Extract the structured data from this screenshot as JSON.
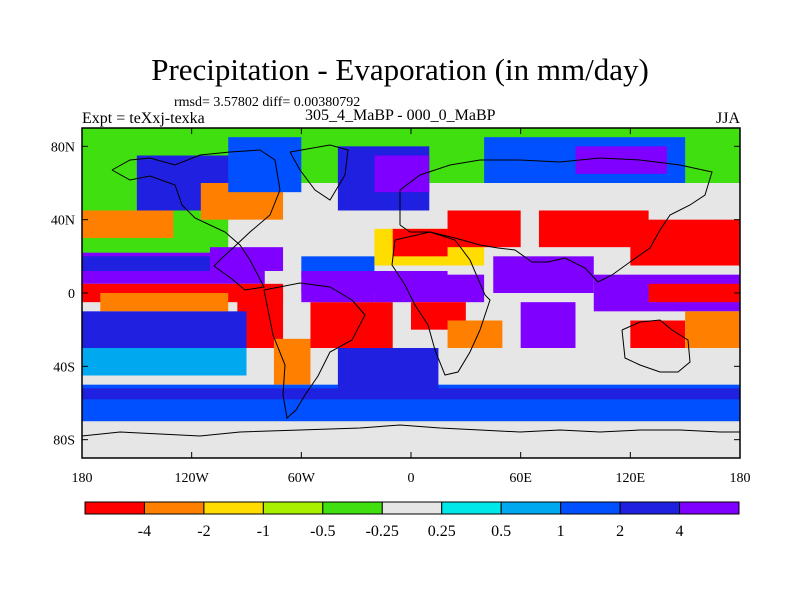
{
  "header": {
    "title": "Precipitation - Evaporation (in mm/day)",
    "stats": "rmsd= 3.57802 diff= 0.00380792",
    "experiment": "Expt = teXxj-texka",
    "case": "305_4_MaBP - 000_0_MaBP",
    "season": "JJA"
  },
  "chart_data": {
    "type": "heatmap",
    "title": "Precipitation - Evaporation (in mm/day)",
    "xlabel": "",
    "ylabel": "",
    "xlim": [
      -180,
      180
    ],
    "ylim": [
      -90,
      90
    ],
    "x_ticks": [
      {
        "value": -180,
        "label": "180"
      },
      {
        "value": -120,
        "label": "120W"
      },
      {
        "value": -60,
        "label": "60W"
      },
      {
        "value": 0,
        "label": "0"
      },
      {
        "value": 60,
        "label": "60E"
      },
      {
        "value": 120,
        "label": "120E"
      },
      {
        "value": 180,
        "label": "180"
      }
    ],
    "y_ticks": [
      {
        "value": 80,
        "label": "80N"
      },
      {
        "value": 40,
        "label": "40N"
      },
      {
        "value": 0,
        "label": "0"
      },
      {
        "value": -40,
        "label": "40S"
      },
      {
        "value": -80,
        "label": "80S"
      }
    ],
    "colorbar": {
      "colors": [
        "#ff0000",
        "#ff8000",
        "#ffdd00",
        "#a8f000",
        "#40e010",
        "#e6e6e6",
        "#00e8e8",
        "#00a8f0",
        "#0050ff",
        "#2020e0",
        "#8000ff"
      ],
      "labels": [
        "-4",
        "-2",
        "-1",
        "-0.5",
        "-0.25",
        "0.25",
        "0.5",
        "1",
        "2",
        "4"
      ],
      "levels": [
        -4,
        -2,
        -1,
        -0.5,
        -0.25,
        0.25,
        0.5,
        1,
        2,
        4
      ]
    },
    "regions": [
      {
        "lon": [
          -180,
          180
        ],
        "lat": [
          -90,
          90
        ],
        "level": 5
      },
      {
        "lon": [
          -180,
          180
        ],
        "lat": [
          60,
          90
        ],
        "level": 4
      },
      {
        "lon": [
          -180,
          -100
        ],
        "lat": [
          20,
          60
        ],
        "level": 4
      },
      {
        "lon": [
          -150,
          -90
        ],
        "lat": [
          45,
          75
        ],
        "level": 9
      },
      {
        "lon": [
          -115,
          -70
        ],
        "lat": [
          40,
          60
        ],
        "level": 1
      },
      {
        "lon": [
          -100,
          -60
        ],
        "lat": [
          55,
          85
        ],
        "level": 8
      },
      {
        "lon": [
          -40,
          10
        ],
        "lat": [
          45,
          80
        ],
        "level": 9
      },
      {
        "lon": [
          -20,
          10
        ],
        "lat": [
          55,
          75
        ],
        "level": 10
      },
      {
        "lon": [
          40,
          150
        ],
        "lat": [
          60,
          85
        ],
        "level": 8
      },
      {
        "lon": [
          90,
          140
        ],
        "lat": [
          65,
          80
        ],
        "level": 10
      },
      {
        "lon": [
          -180,
          -80
        ],
        "lat": [
          5,
          22
        ],
        "level": 10
      },
      {
        "lon": [
          -180,
          -110
        ],
        "lat": [
          12,
          20
        ],
        "level": 9
      },
      {
        "lon": [
          -110,
          -70
        ],
        "lat": [
          12,
          25
        ],
        "level": 10
      },
      {
        "lon": [
          -60,
          -20
        ],
        "lat": [
          8,
          20
        ],
        "level": 8
      },
      {
        "lon": [
          -60,
          20
        ],
        "lat": [
          0,
          12
        ],
        "level": 10
      },
      {
        "lon": [
          -180,
          -70
        ],
        "lat": [
          -5,
          5
        ],
        "level": 0
      },
      {
        "lon": [
          -170,
          -100
        ],
        "lat": [
          -10,
          0
        ],
        "level": 1
      },
      {
        "lon": [
          -95,
          -70
        ],
        "lat": [
          -30,
          0
        ],
        "level": 0
      },
      {
        "lon": [
          -75,
          -55
        ],
        "lat": [
          -50,
          -25
        ],
        "level": 1
      },
      {
        "lon": [
          -55,
          -10
        ],
        "lat": [
          -30,
          -5
        ],
        "level": 0
      },
      {
        "lon": [
          -60,
          -20
        ],
        "lat": [
          -5,
          5
        ],
        "level": 10
      },
      {
        "lon": [
          -180,
          -90
        ],
        "lat": [
          -30,
          -10
        ],
        "level": 9
      },
      {
        "lon": [
          -180,
          -90
        ],
        "lat": [
          -45,
          -30
        ],
        "level": 7
      },
      {
        "lon": [
          -180,
          180
        ],
        "lat": [
          -70,
          -50
        ],
        "level": 8
      },
      {
        "lon": [
          -180,
          180
        ],
        "lat": [
          -58,
          -52
        ],
        "level": 9
      },
      {
        "lon": [
          -180,
          180
        ],
        "lat": [
          -90,
          -70
        ],
        "level": 5
      },
      {
        "lon": [
          -40,
          15
        ],
        "lat": [
          -55,
          -30
        ],
        "level": 9
      },
      {
        "lon": [
          -20,
          40
        ],
        "lat": [
          -5,
          10
        ],
        "level": 10
      },
      {
        "lon": [
          0,
          30
        ],
        "lat": [
          -20,
          -5
        ],
        "level": 0
      },
      {
        "lon": [
          20,
          50
        ],
        "lat": [
          -30,
          -15
        ],
        "level": 1
      },
      {
        "lon": [
          -20,
          40
        ],
        "lat": [
          15,
          35
        ],
        "level": 2
      },
      {
        "lon": [
          -10,
          20
        ],
        "lat": [
          20,
          35
        ],
        "level": 0
      },
      {
        "lon": [
          20,
          60
        ],
        "lat": [
          25,
          45
        ],
        "level": 0
      },
      {
        "lon": [
          45,
          100
        ],
        "lat": [
          0,
          20
        ],
        "level": 10
      },
      {
        "lon": [
          60,
          90
        ],
        "lat": [
          -30,
          -5
        ],
        "level": 10
      },
      {
        "lon": [
          70,
          130
        ],
        "lat": [
          25,
          45
        ],
        "level": 0
      },
      {
        "lon": [
          120,
          180
        ],
        "lat": [
          15,
          40
        ],
        "level": 0
      },
      {
        "lon": [
          100,
          180
        ],
        "lat": [
          -10,
          10
        ],
        "level": 10
      },
      {
        "lon": [
          130,
          180
        ],
        "lat": [
          -5,
          5
        ],
        "level": 0
      },
      {
        "lon": [
          120,
          150
        ],
        "lat": [
          -30,
          -15
        ],
        "level": 0
      },
      {
        "lon": [
          150,
          180
        ],
        "lat": [
          -30,
          -10
        ],
        "level": 1
      },
      {
        "lon": [
          -180,
          -130
        ],
        "lat": [
          30,
          45
        ],
        "level": 1
      }
    ]
  }
}
